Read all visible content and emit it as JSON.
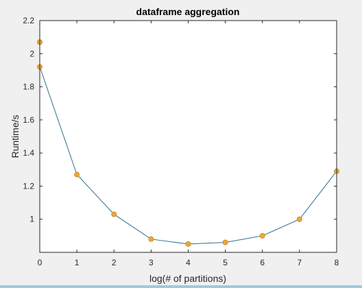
{
  "figure": {
    "background": "#f0f0f0",
    "axes_background": "#ffffff",
    "line_color": "#2e6f8e",
    "marker_color": "#e8a83a",
    "marker_edge_color": "#c8891c"
  },
  "chart_data": {
    "type": "line",
    "title": "dataframe aggregation",
    "xlabel": "log(# of partitions)",
    "ylabel": "Runtime/s",
    "xlim": [
      0,
      8
    ],
    "ylim": [
      0.8,
      2.2
    ],
    "xticks": [
      0,
      1,
      2,
      3,
      4,
      5,
      6,
      7,
      8
    ],
    "yticks": [
      1,
      1.2,
      1.4,
      1.6,
      1.8,
      2,
      2.2
    ],
    "grid": false,
    "series": [
      {
        "x": [
          0,
          1,
          2,
          3,
          4,
          5,
          6,
          7,
          8
        ],
        "y": [
          1.92,
          1.27,
          1.03,
          0.88,
          0.85,
          0.86,
          0.9,
          1.0,
          1.29
        ]
      },
      {
        "x": [
          0
        ],
        "y": [
          2.07
        ],
        "markers_only": true
      }
    ]
  }
}
